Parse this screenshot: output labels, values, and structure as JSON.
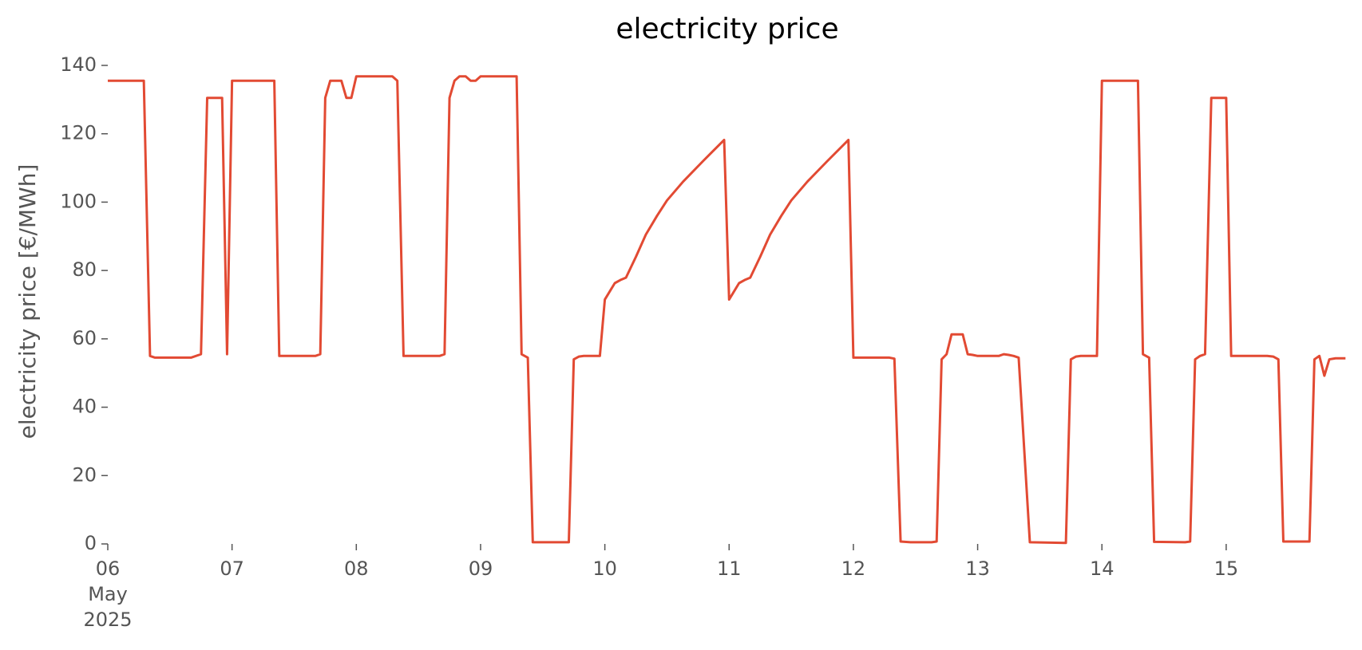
{
  "chart_data": {
    "type": "line",
    "title": "electricity price",
    "ylabel": "electricity price [€/MWh]",
    "series": [
      {
        "name": "electricity price",
        "color": "#e24a33",
        "x": [
          6.0,
          6.29,
          6.34,
          6.38,
          6.67,
          6.75,
          6.8,
          6.92,
          6.96,
          7.0,
          7.34,
          7.38,
          7.67,
          7.71,
          7.75,
          7.79,
          7.88,
          7.92,
          7.96,
          8.0,
          8.29,
          8.33,
          8.38,
          8.67,
          8.71,
          8.75,
          8.79,
          8.83,
          8.88,
          8.92,
          8.96,
          9.0,
          9.29,
          9.33,
          9.38,
          9.42,
          9.71,
          9.75,
          9.79,
          9.83,
          9.96,
          10.0,
          10.08,
          10.13,
          10.17,
          10.25,
          10.33,
          10.42,
          10.5,
          10.63,
          10.79,
          10.96,
          11.0,
          11.08,
          11.13,
          11.17,
          11.25,
          11.33,
          11.42,
          11.5,
          11.63,
          11.79,
          11.96,
          12.0,
          12.29,
          12.33,
          12.38,
          12.46,
          12.63,
          12.67,
          12.71,
          12.75,
          12.79,
          12.88,
          12.92,
          12.96,
          13.0,
          13.17,
          13.21,
          13.25,
          13.29,
          13.33,
          13.42,
          13.71,
          13.75,
          13.79,
          13.83,
          13.96,
          14.0,
          14.29,
          14.33,
          14.38,
          14.42,
          14.67,
          14.71,
          14.75,
          14.79,
          14.83,
          14.88,
          15.0,
          15.04,
          15.33,
          15.38,
          15.42,
          15.46,
          15.67,
          15.71,
          15.75,
          15.79,
          15.83,
          15.88,
          15.96
        ],
        "values": [
          135.5,
          135.5,
          55,
          54.5,
          54.5,
          55.5,
          130.5,
          130.5,
          55.5,
          135.5,
          135.5,
          55,
          55,
          55.5,
          130.5,
          135.5,
          135.5,
          130.5,
          130.5,
          136.8,
          136.8,
          135.5,
          55,
          55,
          55.5,
          130.5,
          135.5,
          136.8,
          136.8,
          135.5,
          135.5,
          136.8,
          136.8,
          55.5,
          54.5,
          0.5,
          0.5,
          54,
          54.8,
          55,
          55,
          71.5,
          76.3,
          77.3,
          77.9,
          84,
          90.5,
          96,
          100.5,
          106,
          112,
          118.2,
          71.5,
          76.3,
          77.3,
          77.9,
          84,
          90.5,
          96,
          100.5,
          106,
          112,
          118.2,
          54.5,
          54.5,
          54.2,
          0.7,
          0.5,
          0.5,
          0.7,
          54,
          55.5,
          61.3,
          61.3,
          55.5,
          55.3,
          55,
          55,
          55.5,
          55.3,
          55,
          54.5,
          0.5,
          0.3,
          54,
          54.8,
          55,
          55,
          135.5,
          135.5,
          55.5,
          54.5,
          0.6,
          0.5,
          0.7,
          54,
          55,
          55.5,
          130.5,
          130.5,
          55,
          55,
          54.8,
          54,
          0.7,
          0.7,
          54,
          55,
          49.2,
          54,
          54.3,
          54.3
        ]
      }
    ],
    "xlim": [
      6,
      15.958
    ],
    "ylim": [
      0,
      140
    ],
    "xticks": [
      {
        "value": 6,
        "label": "06"
      },
      {
        "value": 7,
        "label": "07"
      },
      {
        "value": 8,
        "label": "08"
      },
      {
        "value": 9,
        "label": "09"
      },
      10,
      11,
      12,
      13,
      14,
      15
    ],
    "xtick_sublabels": [
      "May",
      "2025"
    ],
    "yticks": [
      0,
      20,
      40,
      60,
      80,
      100,
      120,
      140
    ],
    "grid": false
  }
}
